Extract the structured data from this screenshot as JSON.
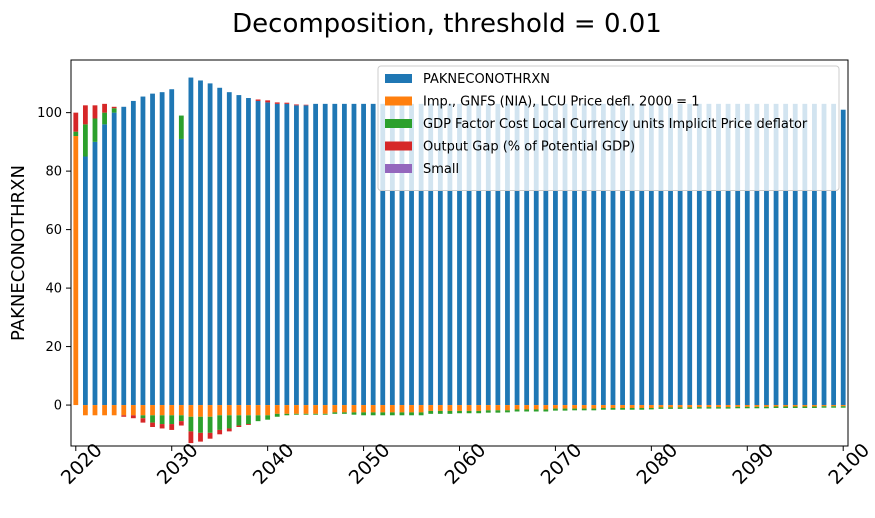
{
  "chart_data": {
    "type": "bar",
    "stacked": true,
    "title": "Decomposition, threshold = 0.01",
    "xlabel": "",
    "ylabel": "PAKNECONOTHRXN",
    "xlim": [
      2020,
      2100
    ],
    "ylim": [
      -14,
      118
    ],
    "x_ticks": [
      2020,
      2030,
      2040,
      2050,
      2060,
      2070,
      2080,
      2090,
      2100
    ],
    "y_ticks": [
      0,
      20,
      40,
      60,
      80,
      100
    ],
    "grid": false,
    "legend_position": "top-right",
    "colors": {
      "PAKNECONOTHRXN": "#1f77b4",
      "Imp., GNFS (NIA), LCU Price defl. 2000 = 1": "#ff7f0e",
      "GDP Factor Cost Local Currency units Implicit Price deflator": "#2ca02c",
      "Output Gap (% of Potential GDP)": "#d62728",
      "Small": "#9467bd"
    },
    "years": [
      2020,
      2021,
      2022,
      2023,
      2024,
      2025,
      2026,
      2027,
      2028,
      2029,
      2030,
      2031,
      2032,
      2033,
      2034,
      2035,
      2036,
      2037,
      2038,
      2039,
      2040,
      2041,
      2042,
      2043,
      2044,
      2045,
      2046,
      2047,
      2048,
      2049,
      2050,
      2051,
      2052,
      2053,
      2054,
      2055,
      2056,
      2057,
      2058,
      2059,
      2060,
      2061,
      2062,
      2063,
      2064,
      2065,
      2066,
      2067,
      2068,
      2069,
      2070,
      2071,
      2072,
      2073,
      2074,
      2075,
      2076,
      2077,
      2078,
      2079,
      2080,
      2081,
      2082,
      2083,
      2084,
      2085,
      2086,
      2087,
      2088,
      2089,
      2090,
      2091,
      2092,
      2093,
      2094,
      2095,
      2096,
      2097,
      2098,
      2099,
      2100
    ],
    "series": [
      {
        "name": "PAKNECONOTHRXN",
        "values": [
          0,
          85,
          90,
          96,
          100,
          102,
          104,
          105.5,
          106.5,
          107,
          108,
          91,
          112,
          111,
          110,
          108.5,
          107,
          106,
          105,
          104,
          103.5,
          103,
          103,
          102.5,
          102.5,
          103,
          103,
          103,
          103,
          103,
          103,
          103,
          103,
          103,
          103,
          103,
          103,
          103,
          103,
          103,
          103,
          103,
          103,
          103,
          103,
          103,
          103,
          103,
          103,
          103,
          103,
          103,
          103,
          103,
          103,
          103,
          103,
          103,
          103,
          103,
          103,
          103,
          103,
          103,
          103,
          103,
          103,
          103,
          103,
          103,
          103,
          103,
          103,
          103,
          103,
          103,
          103,
          103,
          103,
          103,
          101
        ]
      },
      {
        "name": "Imp., GNFS (NIA), LCU Price defl. 2000 = 1",
        "positive": [
          92,
          0,
          0,
          0,
          0,
          0,
          0,
          0,
          0,
          0,
          0,
          0,
          0,
          0,
          0,
          0,
          0,
          0,
          0,
          0,
          0,
          0,
          0,
          0,
          0,
          0,
          0,
          0,
          0,
          0,
          0,
          0,
          0,
          0,
          0,
          0,
          0,
          0,
          0,
          0,
          0,
          0,
          0,
          0,
          0,
          0,
          0,
          0,
          0,
          0,
          0,
          0,
          0,
          0,
          0,
          0,
          0,
          0,
          0,
          0,
          0,
          0,
          0,
          0,
          0,
          0,
          0,
          0,
          0,
          0,
          0,
          0,
          0,
          0,
          0,
          0,
          0,
          0,
          0,
          0,
          0
        ],
        "negative": [
          0,
          -3.5,
          -3.5,
          -3.5,
          -3.5,
          -3.5,
          -3.5,
          -3.5,
          -3.5,
          -3.5,
          -3.5,
          -3.5,
          -4,
          -4,
          -4,
          -3.5,
          -3.5,
          -3.5,
          -3.5,
          -3.5,
          -3.5,
          -3,
          -3,
          -3,
          -3,
          -3,
          -3,
          -2.5,
          -2.5,
          -2.5,
          -2.5,
          -2.5,
          -2.5,
          -2.5,
          -2.5,
          -2.5,
          -2.5,
          -2,
          -2,
          -2,
          -2,
          -2,
          -2,
          -1.8,
          -1.8,
          -1.8,
          -1.5,
          -1.5,
          -1.5,
          -1.5,
          -1.2,
          -1.2,
          -1.2,
          -1.2,
          -1.2,
          -1,
          -1,
          -1,
          -1,
          -1,
          -1,
          -0.8,
          -0.8,
          -0.8,
          -0.8,
          -0.7,
          -0.7,
          -0.7,
          -0.7,
          -0.6,
          -0.6,
          -0.6,
          -0.6,
          -0.5,
          -0.5,
          -0.5,
          -0.5,
          -0.5,
          -0.4,
          -0.4,
          -0.4
        ]
      },
      {
        "name": "GDP Factor Cost Local Currency units Implicit Price deflator",
        "positive": [
          1.5,
          11,
          8,
          4,
          1.5,
          0,
          0,
          0,
          0,
          0,
          0,
          8,
          0,
          0,
          0,
          0,
          0,
          0,
          0,
          0,
          0,
          0,
          0,
          0,
          0,
          0,
          0,
          0,
          0,
          0,
          0,
          0,
          0,
          0,
          0,
          0,
          0,
          0,
          0,
          0,
          0,
          0,
          0,
          0,
          0,
          0,
          0,
          0,
          0,
          0,
          0,
          0,
          0,
          0,
          0,
          0,
          0,
          0,
          0,
          0,
          0,
          0,
          0,
          0,
          0,
          0,
          0,
          0,
          0,
          0,
          0,
          0,
          0,
          0,
          0,
          0,
          0,
          0,
          0,
          0,
          0
        ],
        "negative": [
          0,
          0,
          0,
          0,
          0,
          0,
          0,
          -1,
          -2.5,
          -3,
          -3,
          -2,
          -5,
          -5.5,
          -5.5,
          -5,
          -4.5,
          -3.5,
          -3,
          -2,
          -1.5,
          -1,
          -0.5,
          -0.3,
          -0.3,
          -0.3,
          -0.3,
          -0.5,
          -0.5,
          -0.8,
          -1,
          -1,
          -1,
          -1,
          -1,
          -1,
          -1,
          -1,
          -1,
          -1,
          -0.8,
          -0.8,
          -0.8,
          -0.8,
          -0.8,
          -0.7,
          -0.7,
          -0.7,
          -0.7,
          -0.7,
          -0.7,
          -0.7,
          -0.6,
          -0.6,
          -0.6,
          -0.6,
          -0.6,
          -0.6,
          -0.6,
          -0.6,
          -0.5,
          -0.5,
          -0.5,
          -0.5,
          -0.5,
          -0.5,
          -0.5,
          -0.5,
          -0.5,
          -0.5,
          -0.5,
          -0.5,
          -0.5,
          -0.5,
          -0.5,
          -0.5,
          -0.5,
          -0.5,
          -0.5,
          -0.5,
          -0.5
        ]
      },
      {
        "name": "Output Gap (% of Potential GDP)",
        "positive": [
          6.5,
          6.5,
          4.5,
          3,
          0.5,
          0,
          0,
          0,
          0,
          0,
          0,
          0,
          0,
          0,
          0,
          0,
          0,
          0,
          0,
          0.5,
          0.7,
          0.5,
          0.4,
          0.3,
          0.2,
          0,
          0,
          0,
          0,
          0,
          0,
          0,
          0,
          0,
          0,
          0,
          0,
          0,
          0,
          0,
          0,
          0,
          0,
          0,
          0,
          0,
          0,
          0,
          0,
          0,
          0,
          0,
          0,
          0,
          0,
          0,
          0,
          0,
          0,
          0,
          0,
          0,
          0,
          0,
          0,
          0,
          0,
          0,
          0,
          0,
          0,
          0,
          0,
          0,
          0,
          0,
          0,
          0,
          0,
          0,
          0
        ],
        "negative": [
          0,
          0,
          0,
          0,
          0,
          -0.5,
          -1,
          -1.5,
          -1.5,
          -1.5,
          -2,
          -1.5,
          -4,
          -3,
          -2,
          -1.5,
          -1,
          -0.5,
          -0.3,
          0,
          0,
          0,
          0,
          0,
          0,
          0,
          0,
          0,
          0,
          0,
          0,
          0,
          0,
          0,
          0,
          0,
          0,
          0,
          0,
          0,
          0,
          0,
          0,
          0,
          0,
          0,
          0,
          0,
          0,
          0,
          0,
          0,
          0,
          0,
          0,
          0,
          0,
          0,
          0,
          0,
          0,
          0,
          0,
          0,
          0,
          0,
          0,
          0,
          0,
          0,
          0,
          0,
          0,
          0,
          0,
          0,
          0,
          0,
          0,
          0,
          0
        ]
      },
      {
        "name": "Small",
        "values": [
          0,
          0,
          0,
          0,
          0,
          0,
          0,
          0,
          0,
          0,
          0,
          0,
          0,
          0,
          0,
          0,
          0,
          0,
          0,
          0,
          0,
          0,
          0,
          0,
          0,
          0,
          0,
          0,
          0,
          0,
          0,
          0,
          0,
          0,
          0,
          0,
          0,
          0,
          0,
          0,
          0,
          0,
          0,
          0,
          0,
          0,
          0,
          0,
          0,
          0,
          0,
          0,
          0,
          0,
          0,
          0,
          0,
          0,
          0,
          0,
          0,
          0,
          0,
          0,
          0,
          0,
          0,
          0,
          0,
          0,
          0,
          0,
          0,
          0,
          0,
          0,
          0,
          0,
          0,
          0,
          0
        ]
      }
    ]
  }
}
